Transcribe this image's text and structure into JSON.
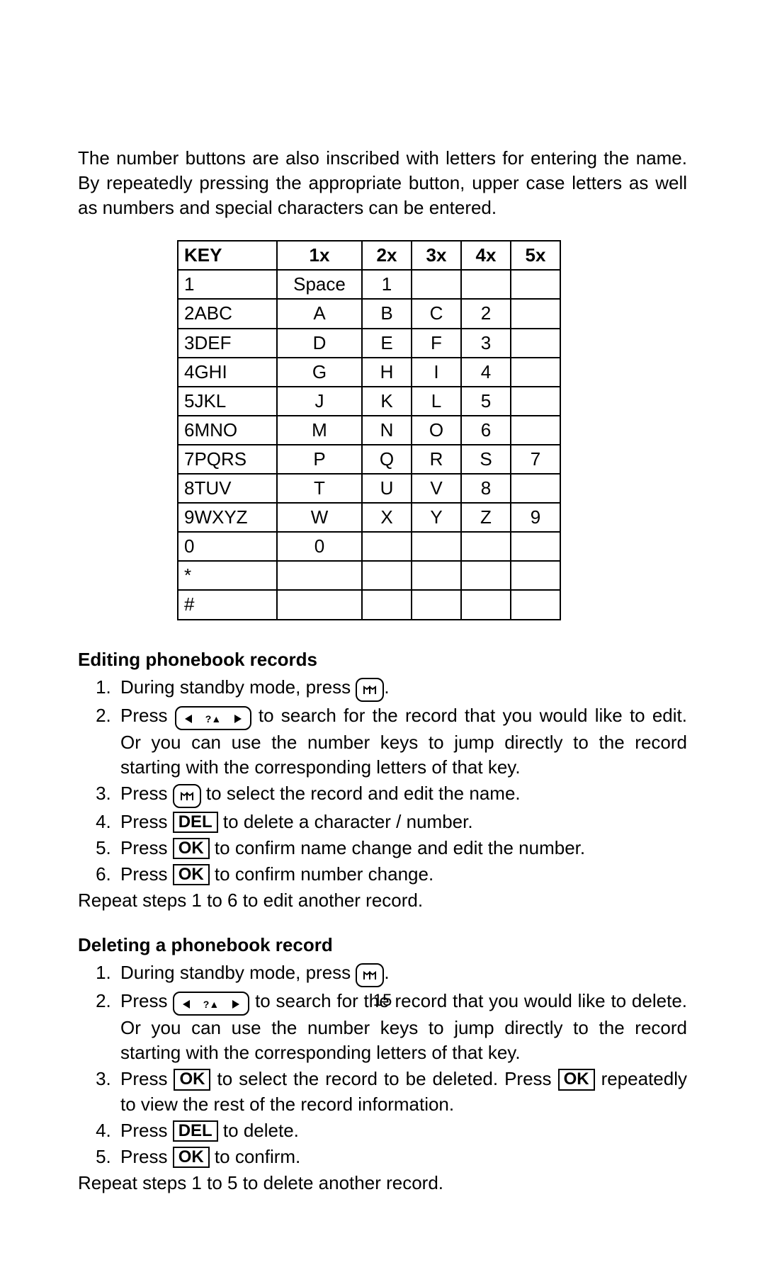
{
  "intro": "The number buttons are also inscribed with letters for entering the name. By repeatedly pressing the appropriate button, upper case letters as well as numbers and special characters can be entered.",
  "table": {
    "headers": [
      "KEY",
      "1x",
      "2x",
      "3x",
      "4x",
      "5x"
    ],
    "rows": [
      [
        "1",
        "Space",
        "1",
        "",
        "",
        ""
      ],
      [
        "2ABC",
        "A",
        "B",
        "C",
        "2",
        ""
      ],
      [
        "3DEF",
        "D",
        "E",
        "F",
        "3",
        ""
      ],
      [
        "4GHI",
        "G",
        "H",
        "I",
        "4",
        ""
      ],
      [
        "5JKL",
        "J",
        "K",
        "L",
        "5",
        ""
      ],
      [
        "6MNO",
        "M",
        "N",
        "O",
        "6",
        ""
      ],
      [
        "7PQRS",
        "P",
        "Q",
        "R",
        "S",
        "7"
      ],
      [
        "8TUV",
        "T",
        "U",
        "V",
        "8",
        ""
      ],
      [
        "9WXYZ",
        "W",
        "X",
        "Y",
        "Z",
        "9"
      ],
      [
        "0",
        "0",
        "",
        "",
        "",
        ""
      ],
      [
        "*",
        "",
        "",
        "",
        "",
        ""
      ],
      [
        "#",
        "",
        "",
        "",
        "",
        ""
      ]
    ]
  },
  "edit": {
    "heading": "Editing phonebook records",
    "steps": {
      "s1a": "During standby mode, press ",
      "s1b": ".",
      "s2a": "Press ",
      "s2b": " to search for the record that you would like to edit.  Or you can use the number keys to jump directly to the record starting with the corresponding letters of that key.",
      "s3a": "Press ",
      "s3b": " to select the record and edit the name.",
      "s4a": "Press ",
      "s4b": " to delete a character / number.",
      "s5a": "Press ",
      "s5b": " to confirm name change and edit the number.",
      "s6a": "Press ",
      "s6b": " to confirm number change."
    },
    "repeat": "Repeat steps 1 to 6 to edit another record."
  },
  "del": {
    "heading": "Deleting a phonebook record",
    "steps": {
      "s1a": "During standby mode, press ",
      "s1b": ".",
      "s2a": "Press ",
      "s2b": " to search for the record that you would like to delete. Or you can use the number keys to jump directly to the record starting with the corresponding letters of that key.",
      "s3a": "Press ",
      "s3b": " to select the record to be deleted.  Press ",
      "s3c": " repeatedly to view the rest of the record information.",
      "s4a": "Press ",
      "s4b": " to delete.",
      "s5a": "Press ",
      "s5b": " to confirm."
    },
    "repeat": "Repeat steps 1 to 5 to delete another record."
  },
  "btn": {
    "ok": "OK",
    "del": "DEL"
  },
  "page_number": "15"
}
